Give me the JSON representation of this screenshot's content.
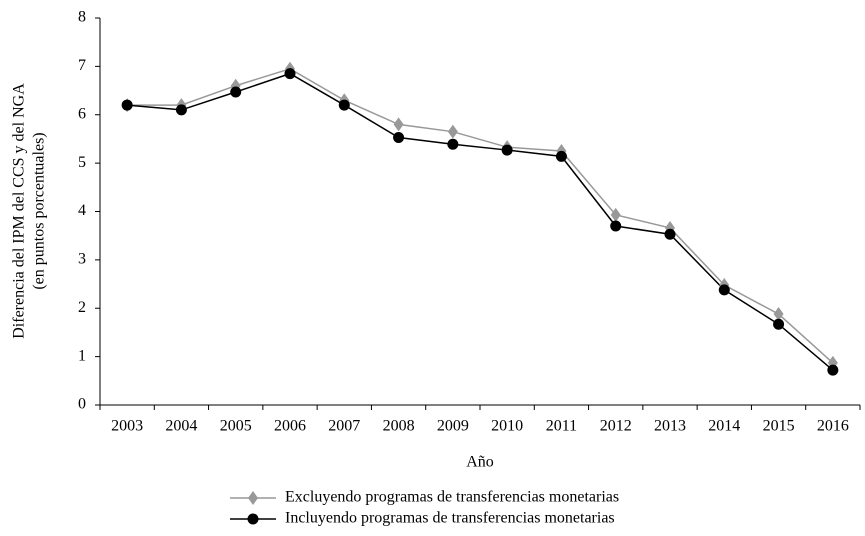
{
  "chart_data": {
    "type": "line",
    "categories": [
      "2003",
      "2004",
      "2005",
      "2006",
      "2007",
      "2008",
      "2009",
      "2010",
      "2011",
      "2012",
      "2013",
      "2014",
      "2015",
      "2016"
    ],
    "series": [
      {
        "name": "Excluyendo programas de transferencias monetarias",
        "color": "#999999",
        "marker": "diamond",
        "values": [
          6.2,
          6.2,
          6.6,
          6.95,
          6.3,
          5.8,
          5.65,
          5.33,
          5.25,
          3.93,
          3.66,
          2.48,
          1.88,
          0.87
        ]
      },
      {
        "name": "Incluyendo programas de transferencias monetarias",
        "color": "#000000",
        "marker": "circle",
        "values": [
          6.2,
          6.1,
          6.47,
          6.85,
          6.2,
          5.53,
          5.39,
          5.27,
          5.14,
          3.7,
          3.53,
          2.38,
          1.67,
          0.72
        ]
      }
    ],
    "ylim": [
      0,
      8
    ],
    "yticks": [
      0,
      1,
      2,
      3,
      4,
      5,
      6,
      7,
      8
    ],
    "xlabel": "Año",
    "ylabel": [
      "Diferencia del IPM del CCS y del NGA",
      "(en puntos porcentuales)"
    ],
    "legend": "bottom"
  }
}
